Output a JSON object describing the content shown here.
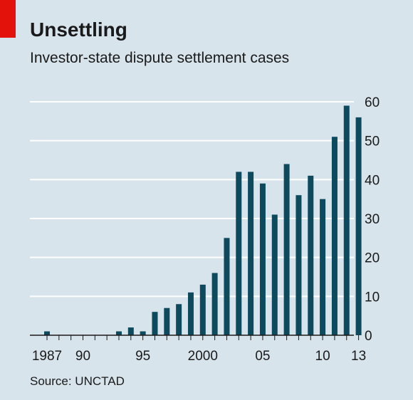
{
  "title": "Unsettling",
  "subtitle": "Investor-state dispute settlement cases",
  "source": "Source: UNCTAD",
  "colors": {
    "bar": "#0d4a5e",
    "background": "#d8e4ec",
    "grid": "#ffffff",
    "accent": "#e3120b",
    "text": "#1a1a1a"
  },
  "chart_data": {
    "type": "bar",
    "categories": [
      1987,
      1988,
      1989,
      1990,
      1991,
      1992,
      1993,
      1994,
      1995,
      1996,
      1997,
      1998,
      1999,
      2000,
      2001,
      2002,
      2003,
      2004,
      2005,
      2006,
      2007,
      2008,
      2009,
      2010,
      2011,
      2012,
      2013
    ],
    "values": [
      1,
      0,
      0,
      0,
      0,
      0,
      1,
      2,
      1,
      6,
      7,
      8,
      11,
      13,
      16,
      25,
      42,
      42,
      39,
      31,
      44,
      36,
      41,
      35,
      51,
      59,
      56
    ],
    "ylim": [
      0,
      60
    ],
    "y_ticks": [
      0,
      10,
      20,
      30,
      40,
      50,
      60
    ],
    "x_tick_labels": [
      {
        "year": 1987,
        "label": "1987"
      },
      {
        "year": 1990,
        "label": "90"
      },
      {
        "year": 1995,
        "label": "95"
      },
      {
        "year": 2000,
        "label": "2000"
      },
      {
        "year": 2005,
        "label": "05"
      },
      {
        "year": 2010,
        "label": "10"
      },
      {
        "year": 2013,
        "label": "13"
      }
    ],
    "y_axis_side": "right",
    "grid": true,
    "legend": "none"
  }
}
